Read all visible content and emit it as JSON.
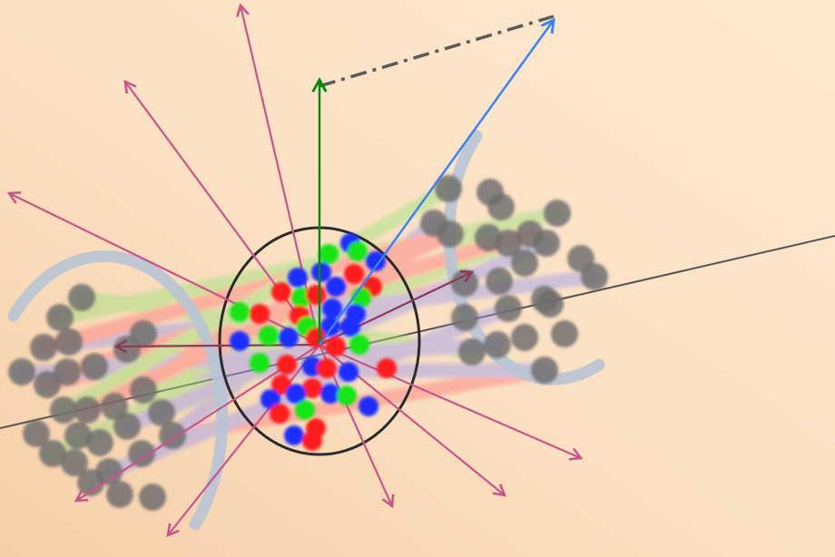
{
  "colors": {
    "background_light": "#fde6c8",
    "background_warm": "#f9d6b3",
    "spectator": "#6b6b6b",
    "nucleus_ring": "#2a2a2a",
    "particle_arrow": "#c8558a",
    "axis_line": "#555555",
    "beam_arc": "#b8c4d4",
    "vertical_arrow": "#0a8a0a",
    "blue_arrow": "#3b82f6",
    "dashed_line": "#5a5a5a",
    "quark_red": "#ff1a1a",
    "quark_green": "#19e619",
    "quark_blue": "#1a2dff",
    "flux_tube_colors": [
      "#ff7a7a",
      "#9be27a",
      "#9a9af0"
    ]
  },
  "diagram": {
    "kind": "heavy-ion-collision",
    "elements": [
      "beam-axis",
      "spectator-nucleons-left",
      "spectator-nucleons-right",
      "beam-arc-left",
      "beam-arc-right",
      "quark-gluon-fireball",
      "emitted-particle-arrows",
      "vertical-arrow",
      "tilted-blue-arrow",
      "dash-dot-connector"
    ]
  }
}
